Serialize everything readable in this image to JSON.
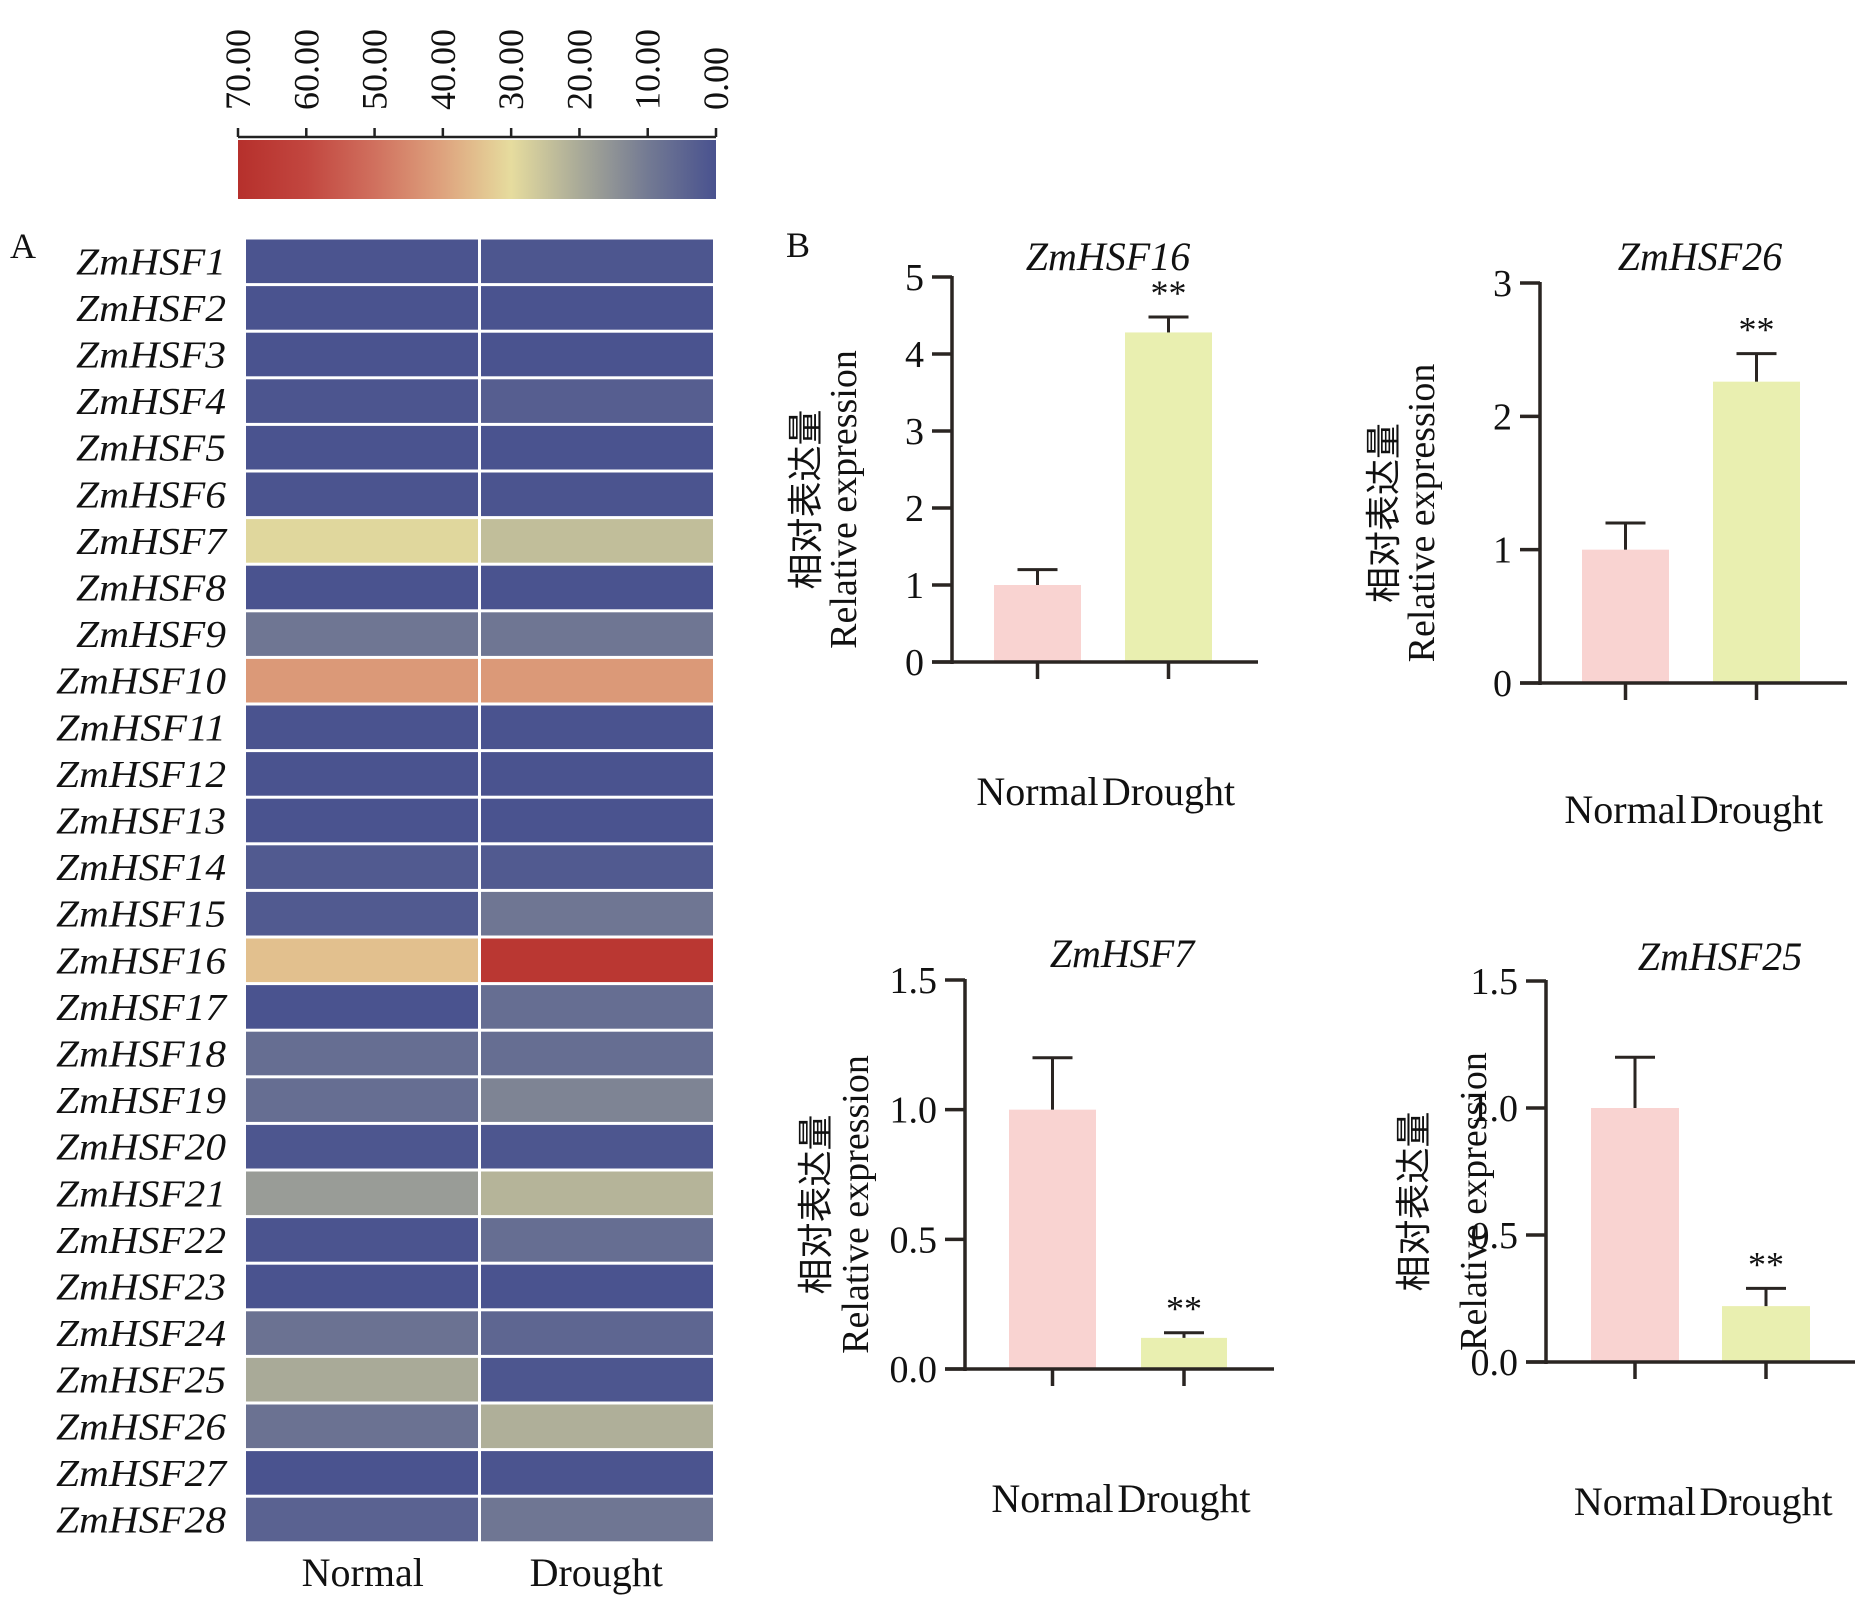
{
  "panel_labels": {
    "a": "A",
    "b": "B"
  },
  "colorbar": {
    "min": 0,
    "max": 70,
    "ticks": [
      "70.00",
      "60.00",
      "50.00",
      "40.00",
      "30.00",
      "20.00",
      "10.00",
      "0.00"
    ],
    "tick_values": [
      70,
      60,
      50,
      40,
      30,
      20,
      10,
      0
    ],
    "stops": [
      {
        "value": 70,
        "color": "#b6302c"
      },
      {
        "value": 60,
        "color": "#c2463f"
      },
      {
        "value": 50,
        "color": "#d0705e"
      },
      {
        "value": 40,
        "color": "#dea37e"
      },
      {
        "value": 30,
        "color": "#e6dc9e"
      },
      {
        "value": 20,
        "color": "#a9aa98"
      },
      {
        "value": 10,
        "color": "#737a93"
      },
      {
        "value": 0,
        "color": "#49528f"
      }
    ]
  },
  "chart_data": [
    {
      "type": "heatmap",
      "title": "",
      "columns": [
        "Normal",
        "Drought"
      ],
      "rows": [
        "ZmHSF1",
        "ZmHSF2",
        "ZmHSF3",
        "ZmHSF4",
        "ZmHSF5",
        "ZmHSF6",
        "ZmHSF7",
        "ZmHSF8",
        "ZmHSF9",
        "ZmHSF10",
        "ZmHSF11",
        "ZmHSF12",
        "ZmHSF13",
        "ZmHSF14",
        "ZmHSF15",
        "ZmHSF16",
        "ZmHSF17",
        "ZmHSF18",
        "ZmHSF19",
        "ZmHSF20",
        "ZmHSF21",
        "ZmHSF22",
        "ZmHSF23",
        "ZmHSF24",
        "ZmHSF25",
        "ZmHSF26",
        "ZmHSF27",
        "ZmHSF28"
      ],
      "values": [
        [
          0.5,
          1
        ],
        [
          0.3,
          0.3
        ],
        [
          0.2,
          0.2
        ],
        [
          0.8,
          3
        ],
        [
          0.3,
          0.3
        ],
        [
          0.5,
          0.4
        ],
        [
          29,
          24
        ],
        [
          0.2,
          0.3
        ],
        [
          9,
          9
        ],
        [
          42,
          42
        ],
        [
          0.3,
          0.3
        ],
        [
          0.3,
          0.3
        ],
        [
          0.3,
          0.3
        ],
        [
          2,
          2
        ],
        [
          2,
          9
        ],
        [
          35,
          67
        ],
        [
          0.3,
          7
        ],
        [
          7,
          7
        ],
        [
          7,
          12
        ],
        [
          1,
          1
        ],
        [
          17,
          22
        ],
        [
          0.5,
          7
        ],
        [
          0.2,
          0.2
        ],
        [
          8,
          5
        ],
        [
          20,
          1
        ],
        [
          8,
          21
        ],
        [
          0.3,
          0.5
        ],
        [
          4,
          9
        ]
      ],
      "value_range": [
        0,
        70
      ]
    },
    {
      "type": "bar",
      "title": "ZmHSF16",
      "categories": [
        "Normal",
        "Drought"
      ],
      "values": [
        1.0,
        4.28
      ],
      "error_upper": [
        1.2,
        4.48
      ],
      "significance": [
        "",
        "**"
      ],
      "ylabel_cn": "相对表达量",
      "ylabel": "Relative expression",
      "ylim": [
        0,
        5
      ],
      "yticks": [
        "0",
        "1",
        "2",
        "3",
        "4",
        "5"
      ],
      "ytick_values": [
        0,
        1,
        2,
        3,
        4,
        5
      ],
      "colors": [
        "#f9d3d1",
        "#e9efb0"
      ]
    },
    {
      "type": "bar",
      "title": "ZmHSF26",
      "categories": [
        "Normal",
        "Drought"
      ],
      "values": [
        1.0,
        2.26
      ],
      "error_upper": [
        1.2,
        2.47
      ],
      "significance": [
        "",
        "**"
      ],
      "ylabel_cn": "相对表达量",
      "ylabel": "Relative expression",
      "ylim": [
        0,
        3
      ],
      "yticks": [
        "0",
        "1",
        "2",
        "3"
      ],
      "ytick_values": [
        0,
        1,
        2,
        3
      ],
      "colors": [
        "#f9d3d1",
        "#e9efb0"
      ]
    },
    {
      "type": "bar",
      "title": "ZmHSF7",
      "categories": [
        "Normal",
        "Drought"
      ],
      "values": [
        1.0,
        0.12
      ],
      "error_upper": [
        1.2,
        0.14
      ],
      "significance": [
        "",
        "**"
      ],
      "ylabel_cn": "相对表达量",
      "ylabel": "Relative expression",
      "ylim": [
        0,
        1.5
      ],
      "yticks": [
        "0.0",
        "0.5",
        "1.0",
        "1.5"
      ],
      "ytick_values": [
        0,
        0.5,
        1.0,
        1.5
      ],
      "colors": [
        "#f9d3d1",
        "#e9efb0"
      ]
    },
    {
      "type": "bar",
      "title": "ZmHSF25",
      "categories": [
        "Normal",
        "Drought"
      ],
      "values": [
        1.0,
        0.22
      ],
      "error_upper": [
        1.2,
        0.29
      ],
      "significance": [
        "",
        "**"
      ],
      "ylabel_cn": "相对表达量",
      "ylabel": "Relative expression",
      "ylim": [
        0,
        1.5
      ],
      "yticks": [
        "0.0",
        "0.5",
        "1.0",
        "1.5"
      ],
      "ytick_values": [
        0,
        0.5,
        1.0,
        1.5
      ],
      "colors": [
        "#f9d3d1",
        "#e9efb0"
      ]
    }
  ]
}
